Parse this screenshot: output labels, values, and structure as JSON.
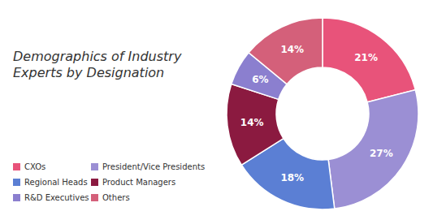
{
  "chart_data": {
    "type": "pie",
    "title": "Demographics of Industry\nExperts by Designation",
    "categories": [
      "CXOs",
      "President/Vice Presidents",
      "Regional Heads",
      "Product Managers",
      "R&D Executives",
      "Others"
    ],
    "values": [
      21,
      27,
      18,
      14,
      6,
      14
    ],
    "value_labels": [
      "21%",
      "27%",
      "18%",
      "14%",
      "6%",
      "14%"
    ],
    "colors": [
      "#e8537a",
      "#9b8fd4",
      "#5b7fd4",
      "#8b1a40",
      "#8b7fcf",
      "#d4607a"
    ],
    "data_labels": true,
    "legend": "lower left"
  }
}
